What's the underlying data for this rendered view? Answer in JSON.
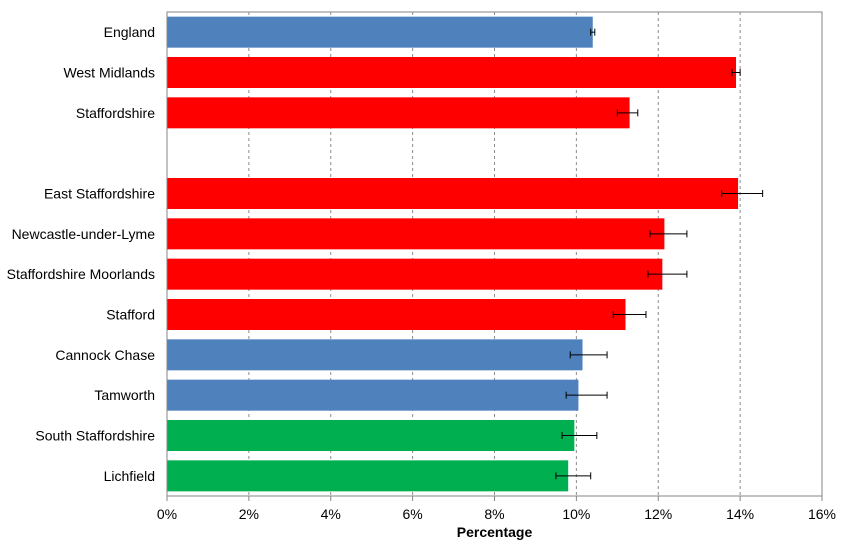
{
  "chart_data": {
    "type": "bar",
    "orientation": "horizontal",
    "categories": [
      "England",
      "West Midlands",
      "Staffordshire",
      "",
      "East Staffordshire",
      "Newcastle-under-Lyme",
      "Staffordshire Moorlands",
      "Stafford",
      "Cannock Chase",
      "Tamworth",
      "South Staffordshire",
      "Lichfield"
    ],
    "values": [
      10.4,
      13.9,
      11.3,
      null,
      13.95,
      12.15,
      12.1,
      11.2,
      10.15,
      10.05,
      9.95,
      9.8
    ],
    "error_low": [
      10.35,
      13.8,
      11.0,
      null,
      13.55,
      11.8,
      11.75,
      10.9,
      9.85,
      9.75,
      9.65,
      9.5
    ],
    "error_high": [
      10.45,
      14.0,
      11.5,
      null,
      14.55,
      12.7,
      12.7,
      11.7,
      10.75,
      10.75,
      10.5,
      10.35
    ],
    "bar_colors": [
      "#4f81bd",
      "#ff0000",
      "#ff0000",
      null,
      "#ff0000",
      "#ff0000",
      "#ff0000",
      "#ff0000",
      "#4f81bd",
      "#4f81bd",
      "#00b050",
      "#00b050"
    ],
    "xlim": [
      0,
      16
    ],
    "xticks": [
      0,
      2,
      4,
      6,
      8,
      10,
      12,
      14,
      16
    ],
    "tick_suffix": "%",
    "xlabel": "Percentage",
    "ylabel": "",
    "title": "",
    "grid": "vertical dashed",
    "legend": "none"
  }
}
